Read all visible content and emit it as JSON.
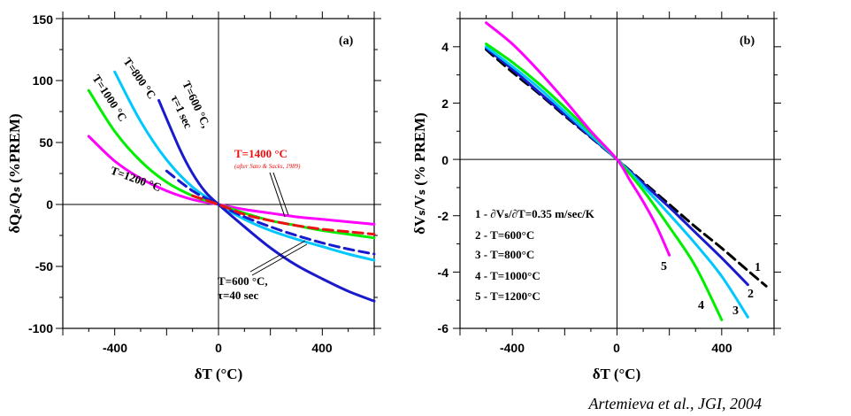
{
  "chart_data": [
    {
      "type": "line",
      "panel_label": "(a)",
      "xlabel": "δT (°C)",
      "ylabel": "δQₛ/Qₛ (%PREM)",
      "xlim": [
        -600,
        600
      ],
      "ylim": [
        -100,
        150
      ],
      "x_ticks": [
        -400,
        0,
        400
      ],
      "y_ticks": [
        -100,
        -50,
        0,
        50,
        100,
        150
      ],
      "grid": false,
      "series": [
        {
          "label": "T=1200 °C",
          "color": "#ff00ff",
          "dash": "solid",
          "x": [
            -500,
            -400,
            -300,
            -200,
            -100,
            0,
            100,
            200,
            300,
            400,
            500,
            600
          ],
          "y": [
            55,
            35,
            21,
            11,
            4,
            0,
            -4,
            -7,
            -10,
            -12,
            -14,
            -16
          ]
        },
        {
          "label": "T=1000 °C",
          "color": "#00ee00",
          "dash": "solid",
          "x": [
            -500,
            -400,
            -300,
            -200,
            -100,
            0,
            100,
            200,
            300,
            400,
            500,
            600
          ],
          "y": [
            92,
            59,
            35,
            18,
            7,
            0,
            -7,
            -13,
            -17,
            -21,
            -24,
            -27
          ]
        },
        {
          "label": "T=800 °C",
          "color": "#00c8ff",
          "dash": "solid",
          "x": [
            -400,
            -300,
            -200,
            -100,
            0,
            100,
            200,
            300,
            400,
            500,
            600
          ],
          "y": [
            107,
            67,
            36,
            14,
            0,
            -12,
            -21,
            -28,
            -34,
            -40,
            -45
          ]
        },
        {
          "label": "T=600 °C, τ=1 sec",
          "color": "#1a1acd",
          "dash": "solid",
          "x": [
            -230,
            -150,
            -100,
            -50,
            0,
            100,
            200,
            300,
            400,
            500,
            600
          ],
          "y": [
            84,
            45,
            25,
            10,
            0,
            -18,
            -35,
            -49,
            -60,
            -70,
            -78
          ]
        },
        {
          "label": "T=600 °C, τ=40 sec",
          "color": "#1a1acd",
          "dash": "dashed",
          "x": [
            -200,
            -100,
            0,
            100,
            200,
            300,
            400,
            500,
            600
          ],
          "y": [
            27,
            11,
            0,
            -10,
            -18,
            -25,
            -31,
            -36,
            -40
          ]
        },
        {
          "label": "T=1400 °C",
          "color": "#ee1111",
          "dash": "dashed",
          "x": [
            -100,
            0,
            100,
            200,
            300,
            400,
            500,
            600
          ],
          "y": [
            7,
            0,
            -8,
            -13,
            -17,
            -20,
            -22,
            -24
          ]
        }
      ],
      "annotations": {
        "t1200": "T=1200 °C",
        "t1000": "T=1000 °C",
        "t800": "T=800 °C",
        "t600_line1": "T=600 °C,",
        "t600_line2": "τ=1 sec",
        "t1400": "T=1400 °C",
        "t1400_source": "(after Sato & Sacks, 1989)",
        "t600b_line1": "T=600 °C,",
        "t600b_line2": "τ=40 sec"
      },
      "colors": {
        "red_annotation": "#ee1111"
      }
    },
    {
      "type": "line",
      "panel_label": "(b)",
      "xlabel": "δT (°C)",
      "ylabel": "δVₛ/Vₛ (% PREM)",
      "xlim": [
        -600,
        600
      ],
      "ylim": [
        -6,
        5
      ],
      "x_ticks": [
        -400,
        0,
        400
      ],
      "y_ticks": [
        -6,
        -4,
        -2,
        0,
        2,
        4
      ],
      "grid": false,
      "legend": [
        "1 - ∂Vₛ/∂T=0.35 m/sec/K",
        "2 - T=600°C",
        "3 - T=800°C",
        "4 - T=1000°C",
        "5 - T=1200°C"
      ],
      "series": [
        {
          "name": "1",
          "color": "#000000",
          "dash": "dashed",
          "x": [
            -500,
            -400,
            -300,
            -200,
            -100,
            0,
            100,
            200,
            300,
            400,
            500,
            570
          ],
          "y": [
            3.9,
            3.1,
            2.35,
            1.55,
            0.78,
            0,
            -0.8,
            -1.6,
            -2.4,
            -3.15,
            -3.95,
            -4.5
          ]
        },
        {
          "name": "2",
          "color": "#1a1acd",
          "dash": "solid",
          "x": [
            -500,
            -400,
            -300,
            -200,
            -100,
            0,
            100,
            200,
            300,
            400,
            500
          ],
          "y": [
            3.95,
            3.2,
            2.4,
            1.6,
            0.8,
            0,
            -0.85,
            -1.7,
            -2.6,
            -3.5,
            -4.45
          ]
        },
        {
          "name": "3",
          "color": "#00c8ff",
          "dash": "solid",
          "x": [
            -500,
            -400,
            -300,
            -200,
            -100,
            0,
            100,
            200,
            300,
            400,
            500
          ],
          "y": [
            4.0,
            3.3,
            2.55,
            1.7,
            0.85,
            0,
            -0.95,
            -1.95,
            -3.0,
            -4.15,
            -5.6
          ]
        },
        {
          "name": "4",
          "color": "#00ee00",
          "dash": "solid",
          "x": [
            -500,
            -400,
            -300,
            -200,
            -100,
            0,
            100,
            200,
            300,
            400
          ],
          "y": [
            4.1,
            3.45,
            2.7,
            1.85,
            0.95,
            0,
            -1.1,
            -2.4,
            -3.8,
            -5.7
          ]
        },
        {
          "name": "5",
          "color": "#ff00ff",
          "dash": "solid",
          "x": [
            -500,
            -400,
            -300,
            -200,
            -100,
            0,
            50,
            100,
            150,
            200
          ],
          "y": [
            4.85,
            4.1,
            3.15,
            2.1,
            1.0,
            0,
            -0.75,
            -1.5,
            -2.35,
            -3.4
          ]
        }
      ]
    }
  ],
  "credit": "Artemieva et al., JGI, 2004"
}
